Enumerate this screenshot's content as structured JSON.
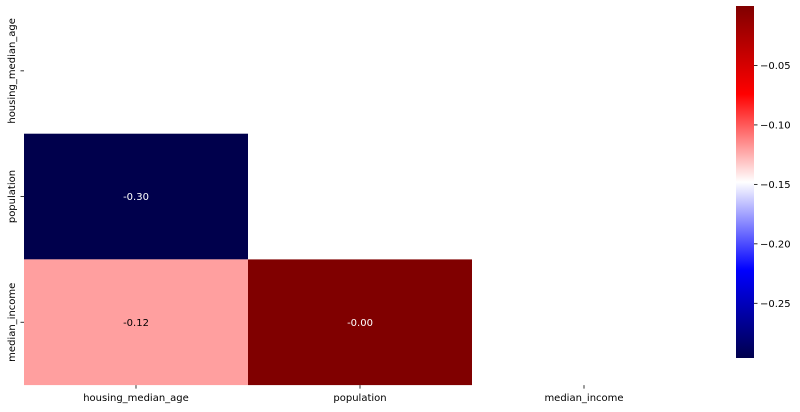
{
  "chart_data": {
    "type": "heatmap",
    "title": "",
    "xlabel": "",
    "ylabel": "",
    "x_categories": [
      "housing_median_age",
      "population",
      "median_income"
    ],
    "y_categories": [
      "housing_median_age",
      "population",
      "median_income"
    ],
    "mask": "upper-triangle-including-diagonal",
    "cells": [
      {
        "row": "population",
        "col": "housing_median_age",
        "value": -0.3,
        "label": "-0.30"
      },
      {
        "row": "median_income",
        "col": "housing_median_age",
        "value": -0.12,
        "label": "-0.12"
      },
      {
        "row": "median_income",
        "col": "population",
        "value": -0.0,
        "label": "-0.00"
      }
    ],
    "colormap": "seismic",
    "colorbar": {
      "range": [
        -0.296,
        0.0
      ],
      "ticks": [
        -0.25,
        -0.2,
        -0.15,
        -0.1,
        -0.05
      ],
      "tick_labels": [
        "−0.25",
        "−0.20",
        "−0.15",
        "−0.10",
        "−0.05"
      ],
      "placement": "right"
    }
  },
  "colors": {
    "cmap_stops": [
      "#00004c",
      "#0000ff",
      "#ffffff",
      "#ff0000",
      "#800000"
    ],
    "text_on_dark": "#ffffff",
    "text_on_light": "#000000",
    "tick_color": "#000000"
  }
}
